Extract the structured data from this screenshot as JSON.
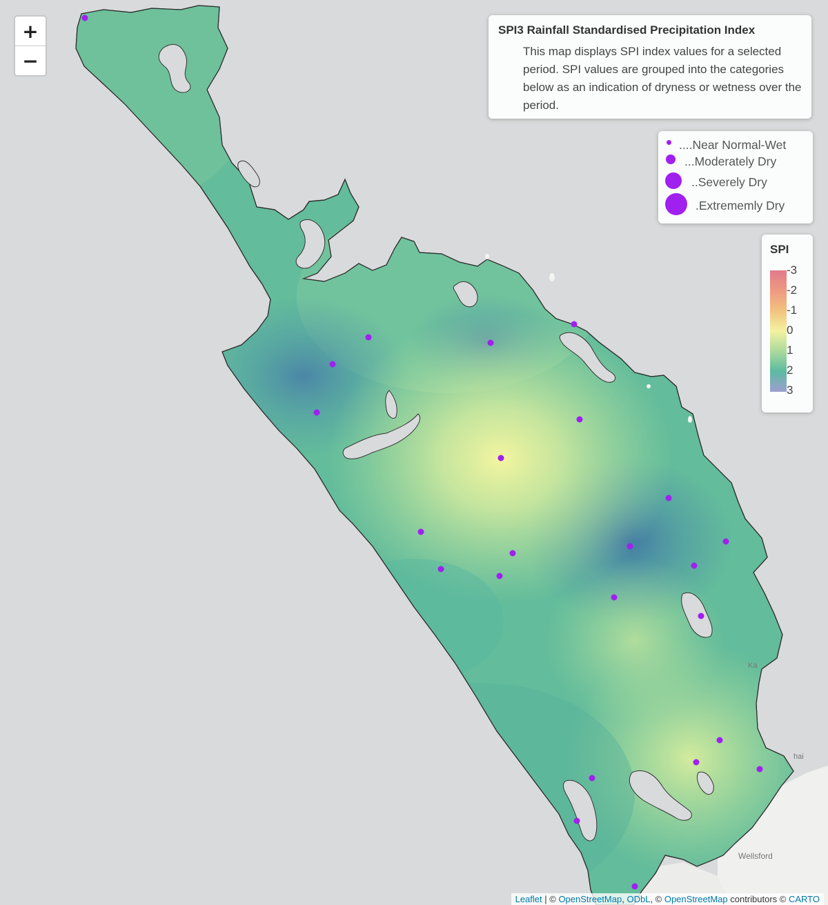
{
  "info": {
    "title": "SPI3 Rainfall Standardised Precipitation Index",
    "body": "This map displays SPI index values for a selected period. SPI values are grouped into the categories below as an indication of dryness or wetness over the period."
  },
  "zoom": {
    "in_label": "+",
    "out_label": "−"
  },
  "size_legend": {
    "items": [
      {
        "label": "....Near Normal-Wet"
      },
      {
        "label": "...Moderately Dry"
      },
      {
        "label": "..Severely Dry"
      },
      {
        "label": ".Extrememly Dry"
      }
    ],
    "dot_color": "#a020f0"
  },
  "spi_legend": {
    "title": "SPI",
    "ticks": [
      "-3",
      "-2",
      "-1",
      "0",
      "1",
      "2",
      "3"
    ],
    "colors": [
      "#e07a8a",
      "#f2c27f",
      "#f3f2a1",
      "#a9d99c",
      "#5dbba0",
      "#6b8fb4",
      "#9d9fd0"
    ]
  },
  "basemap_labels": {
    "town": "Wellsford",
    "partial_1": "Ka",
    "partial_2": "hai"
  },
  "attribution": {
    "leaflet": "Leaflet",
    "sep1": " | © ",
    "osm": "OpenStreetMap",
    "sep2": ", ",
    "odbl": "ODbL",
    "sep3": ", © ",
    "osm2": "OpenStreetMap",
    "contributors": " contributors © ",
    "carto": "CARTO"
  },
  "surface": {
    "base": "#63bc9b",
    "blobs": [
      {
        "type": "wet",
        "spi": 2.6
      },
      {
        "type": "wet",
        "spi": 2.6
      },
      {
        "type": "dry",
        "spi": 0.0
      },
      {
        "type": "dry",
        "spi": 0.6
      },
      {
        "type": "dry",
        "spi": 0.4
      }
    ]
  },
  "stations": [
    {
      "category": "Near Normal-Wet"
    },
    {
      "category": "Near Normal-Wet"
    },
    {
      "category": "Near Normal-Wet"
    },
    {
      "category": "Near Normal-Wet"
    },
    {
      "category": "Near Normal-Wet"
    },
    {
      "category": "Near Normal-Wet"
    },
    {
      "category": "Near Normal-Wet"
    },
    {
      "category": "Near Normal-Wet"
    },
    {
      "category": "Near Normal-Wet"
    },
    {
      "category": "Near Normal-Wet"
    },
    {
      "category": "Near Normal-Wet"
    },
    {
      "category": "Near Normal-Wet"
    },
    {
      "category": "Near Normal-Wet"
    },
    {
      "category": "Near Normal-Wet"
    },
    {
      "category": "Near Normal-Wet"
    },
    {
      "category": "Near Normal-Wet"
    },
    {
      "category": "Near Normal-Wet"
    },
    {
      "category": "Near Normal-Wet"
    },
    {
      "category": "Near Normal-Wet"
    },
    {
      "category": "Near Normal-Wet"
    },
    {
      "category": "Near Normal-Wet"
    },
    {
      "category": "Near Normal-Wet"
    },
    {
      "category": "Near Normal-Wet"
    },
    {
      "category": "Near Normal-Wet"
    }
  ]
}
